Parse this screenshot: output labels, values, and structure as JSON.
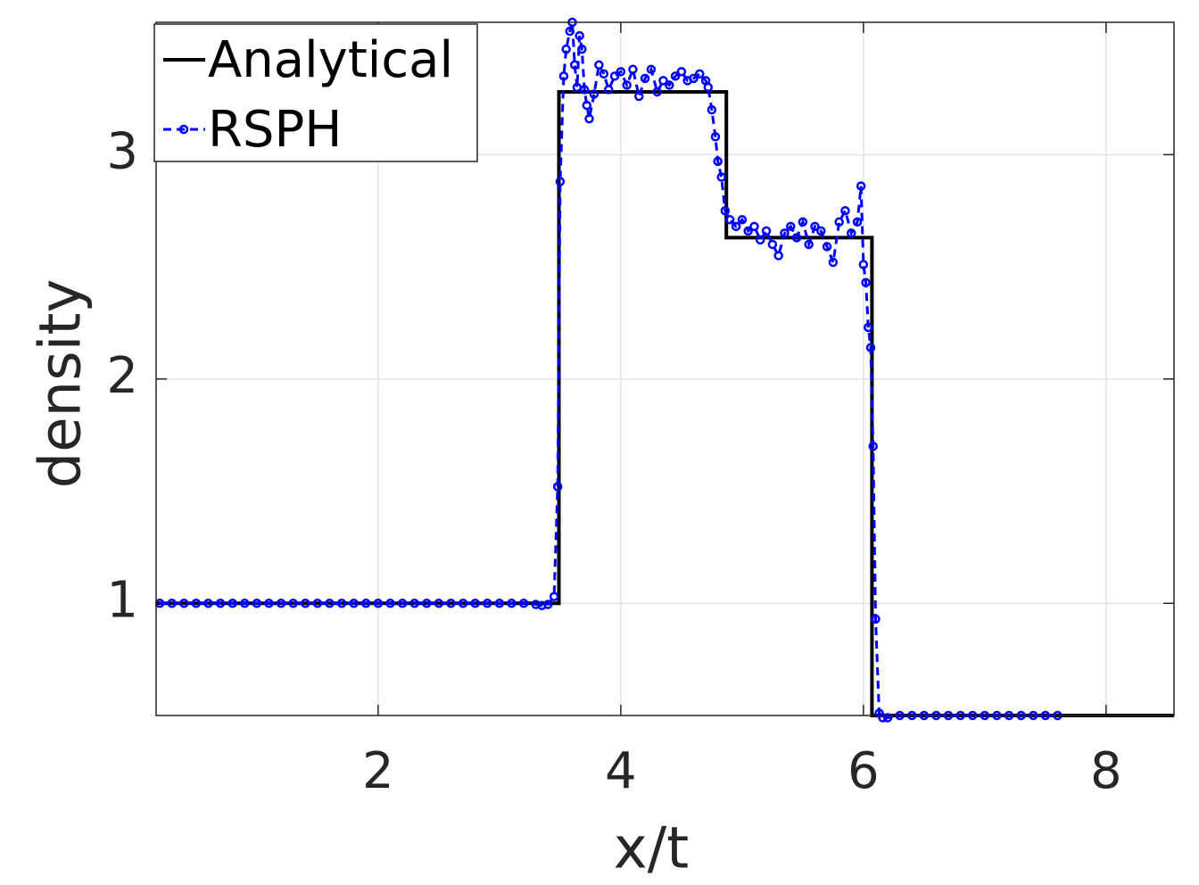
{
  "chart_data": {
    "type": "line",
    "x_label": "x/t",
    "y_label": "density",
    "xlim": [
      0.17,
      8.56
    ],
    "ylim": [
      0.5,
      3.59
    ],
    "xticks": [
      2,
      4,
      6,
      8
    ],
    "yticks": [
      1,
      2,
      3
    ],
    "grid": true,
    "legend": "upper left",
    "series": [
      {
        "name": "Analytical",
        "color": "#000000",
        "x": [
          0.17,
          3.49,
          3.49,
          4.87,
          4.87,
          6.07,
          6.07,
          8.56
        ],
        "values": [
          1,
          1,
          3.28,
          3.28,
          2.63,
          2.63,
          0.5,
          0.5
        ]
      },
      {
        "name": "RSPH",
        "color": "#0000ff",
        "x": [
          0.2,
          0.3,
          0.4,
          0.5,
          0.6,
          0.7,
          0.8,
          0.9,
          1.0,
          1.1,
          1.2,
          1.3,
          1.4,
          1.5,
          1.6,
          1.7,
          1.8,
          1.9,
          2.0,
          2.1,
          2.2,
          2.3,
          2.4,
          2.5,
          2.6,
          2.7,
          2.8,
          2.9,
          3.0,
          3.1,
          3.2,
          3.3,
          3.35,
          3.4,
          3.45,
          3.48,
          3.5,
          3.53,
          3.55,
          3.58,
          3.6,
          3.62,
          3.64,
          3.66,
          3.68,
          3.7,
          3.72,
          3.74,
          3.78,
          3.82,
          3.86,
          3.9,
          3.95,
          4.0,
          4.05,
          4.1,
          4.15,
          4.2,
          4.25,
          4.3,
          4.35,
          4.4,
          4.45,
          4.5,
          4.55,
          4.6,
          4.65,
          4.7,
          4.72,
          4.75,
          4.78,
          4.8,
          4.83,
          4.86,
          4.9,
          4.95,
          5.0,
          5.05,
          5.1,
          5.15,
          5.2,
          5.25,
          5.3,
          5.35,
          5.4,
          5.45,
          5.5,
          5.55,
          5.6,
          5.65,
          5.7,
          5.75,
          5.8,
          5.85,
          5.9,
          5.95,
          5.98,
          6.0,
          6.02,
          6.04,
          6.06,
          6.08,
          6.1,
          6.13,
          6.16,
          6.2,
          6.3,
          6.4,
          6.5,
          6.6,
          6.7,
          6.8,
          6.9,
          7.0,
          7.1,
          7.2,
          7.3,
          7.4,
          7.5,
          7.6
        ],
        "values": [
          1,
          1,
          1,
          1,
          1,
          1,
          1,
          1,
          1,
          1,
          1,
          1,
          1,
          1,
          1,
          1,
          1,
          1,
          1,
          1,
          1,
          1,
          1,
          1,
          1,
          1,
          1,
          1,
          1,
          1,
          1,
          0.995,
          0.99,
          0.995,
          1.03,
          1.52,
          2.88,
          3.35,
          3.47,
          3.55,
          3.59,
          3.4,
          3.3,
          3.53,
          3.47,
          3.29,
          3.22,
          3.16,
          3.27,
          3.4,
          3.36,
          3.29,
          3.35,
          3.37,
          3.31,
          3.38,
          3.26,
          3.34,
          3.38,
          3.28,
          3.33,
          3.31,
          3.35,
          3.37,
          3.33,
          3.34,
          3.36,
          3.33,
          3.3,
          3.2,
          3.08,
          2.97,
          2.9,
          2.75,
          2.71,
          2.68,
          2.71,
          2.66,
          2.68,
          2.62,
          2.66,
          2.6,
          2.55,
          2.65,
          2.68,
          2.63,
          2.7,
          2.6,
          2.68,
          2.66,
          2.59,
          2.52,
          2.7,
          2.75,
          2.65,
          2.7,
          2.86,
          2.51,
          2.43,
          2.23,
          2.14,
          1.7,
          0.93,
          0.51,
          0.49,
          0.49,
          0.5,
          0.5,
          0.5,
          0.5,
          0.5,
          0.5,
          0.5,
          0.5,
          0.5,
          0.5,
          0.5,
          0.5,
          0.5,
          0.5
        ]
      }
    ]
  }
}
